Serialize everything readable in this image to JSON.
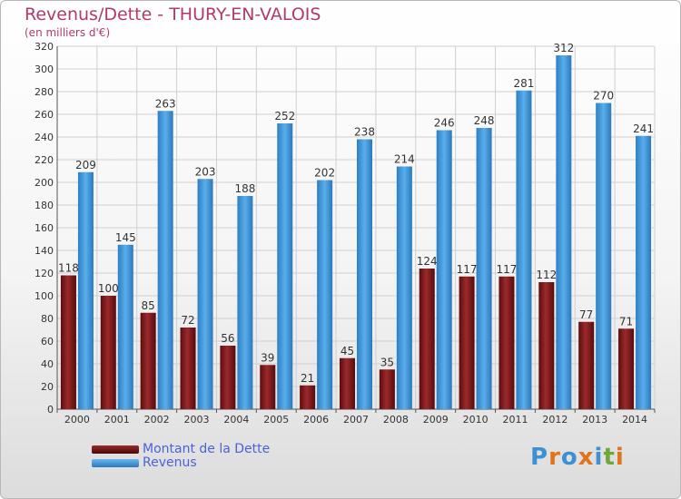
{
  "header": {
    "title": "Revenus/Dette - THURY-EN-VALOIS",
    "subtitle": "(en milliers d'€)"
  },
  "legend": {
    "debt_label": "Montant de la Dette",
    "revenue_label": "Revenus"
  },
  "logo": {
    "text": "Proxiti"
  },
  "colors": {
    "debt": "#7a1618",
    "revenue": "#3d93d8",
    "title": "#b03a6a",
    "legend_text": "#4a63d6",
    "grid": "#d0d0d0"
  },
  "chart_data": {
    "type": "bar",
    "title": "Revenus/Dette - THURY-EN-VALOIS",
    "subtitle": "(en milliers d'€)",
    "categories": [
      "2000",
      "2001",
      "2002",
      "2003",
      "2004",
      "2005",
      "2006",
      "2007",
      "2008",
      "2009",
      "2010",
      "2011",
      "2012",
      "2013",
      "2014"
    ],
    "series": [
      {
        "name": "Montant de la Dette",
        "values": [
          118,
          100,
          85,
          72,
          56,
          39,
          21,
          45,
          35,
          124,
          117,
          117,
          112,
          77,
          71
        ]
      },
      {
        "name": "Revenus",
        "values": [
          209,
          145,
          263,
          203,
          188,
          252,
          202,
          238,
          214,
          246,
          248,
          281,
          312,
          270,
          241
        ]
      }
    ],
    "ylim": [
      0,
      320
    ],
    "ytick_step": 20,
    "grid": true,
    "legend": "bottom-left"
  }
}
